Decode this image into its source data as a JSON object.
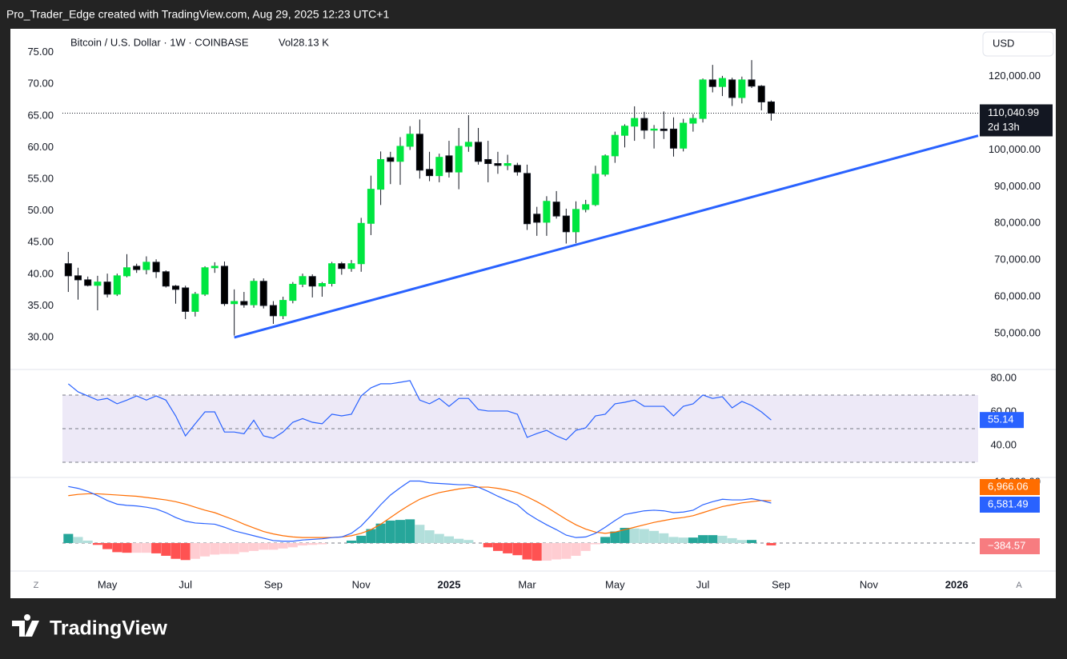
{
  "header": "Pro_Trader_Edge created with TradingView.com, Aug 29, 2025 12:23 UTC+1",
  "footer_brand": "TradingView",
  "axis_buttons": [
    "Z",
    "A"
  ],
  "chart_data": [
    {
      "type": "candlestick",
      "title": "Bitcoin / U.S. Dollar · 1W · COINBASE",
      "volume_label": "Vol28.13 K",
      "currency": "USD",
      "xlim": [
        -0.6,
        93.2
      ],
      "xticks": [
        {
          "value": 4,
          "label": "May"
        },
        {
          "value": 12,
          "label": "Jul"
        },
        {
          "value": 21,
          "label": "Sep"
        },
        {
          "value": 30,
          "label": "Nov"
        },
        {
          "value": 39,
          "label": "2025"
        },
        {
          "value": 47,
          "label": "Mar"
        },
        {
          "value": 56,
          "label": "May"
        },
        {
          "value": 65,
          "label": "Jul"
        },
        {
          "value": 73,
          "label": "Sep"
        },
        {
          "value": 82,
          "label": "Nov"
        },
        {
          "value": 91,
          "label": "2026"
        }
      ],
      "open": [
        69000,
        65700,
        64600,
        63100,
        64000,
        60700,
        65700,
        68300,
        67400,
        69400,
        66800,
        62900,
        62400,
        56000,
        60700,
        67900,
        68300,
        58100,
        58700,
        57800,
        64200,
        57600,
        54800,
        59000,
        63400,
        65500,
        62900,
        63600,
        69000,
        67700,
        69000,
        80000,
        89300,
        97900,
        96900,
        101000,
        104300,
        94700,
        93000,
        98400,
        94000,
        101000,
        102100,
        97400,
        96300,
        95800,
        95800,
        93600,
        82500,
        80300,
        85800,
        82000,
        77700,
        83800,
        85100,
        93400,
        98400,
        104000,
        106500,
        108600,
        105400,
        105700,
        105700,
        100500,
        107300,
        108600,
        119100,
        117300,
        119100,
        114300,
        119100,
        117400,
        113100
      ],
      "high": [
        72200,
        67900,
        65500,
        65700,
        66300,
        66300,
        71600,
        69000,
        71000,
        70200,
        67200,
        63200,
        63000,
        61300,
        68300,
        69400,
        69600,
        62000,
        61300,
        65000,
        65000,
        58800,
        60000,
        64000,
        66300,
        66100,
        64000,
        69500,
        69500,
        70000,
        81500,
        93000,
        99600,
        99500,
        103500,
        106500,
        108300,
        99500,
        99000,
        102500,
        106000,
        109500,
        106000,
        102500,
        99500,
        98700,
        96500,
        96000,
        84500,
        87400,
        88800,
        84000,
        86000,
        86400,
        95700,
        98800,
        105000,
        107000,
        111900,
        110400,
        106800,
        110500,
        108900,
        108500,
        109800,
        119500,
        123200,
        120200,
        119700,
        120000,
        124500,
        117700,
        113500
      ],
      "low": [
        61300,
        59200,
        62800,
        56300,
        59800,
        60200,
        65300,
        66500,
        66100,
        65100,
        62500,
        58100,
        53900,
        54600,
        60200,
        66500,
        57500,
        49400,
        57000,
        57000,
        56800,
        52600,
        53900,
        58200,
        62600,
        59800,
        60000,
        62800,
        66000,
        66800,
        66800,
        76800,
        85000,
        90700,
        90500,
        100000,
        92200,
        91500,
        91200,
        92500,
        89300,
        99500,
        96000,
        91200,
        93500,
        94500,
        93000,
        78200,
        76600,
        76600,
        81300,
        74500,
        74600,
        83000,
        84700,
        92800,
        96500,
        100700,
        102500,
        103000,
        100400,
        103000,
        98200,
        99600,
        105000,
        107500,
        115700,
        114700,
        112000,
        112700,
        116900,
        110800,
        108000
      ],
      "close": [
        65700,
        64600,
        63100,
        64000,
        60700,
        65700,
        67900,
        67400,
        69400,
        66800,
        62900,
        62000,
        56000,
        60700,
        67900,
        68300,
        58100,
        58700,
        57800,
        64200,
        57600,
        54800,
        59000,
        63400,
        65500,
        62900,
        63600,
        69000,
        67700,
        69000,
        80000,
        89300,
        97400,
        96900,
        101000,
        104300,
        94500,
        93000,
        98000,
        94000,
        101000,
        102100,
        96900,
        96300,
        95800,
        96300,
        94000,
        79900,
        80300,
        86000,
        82000,
        77700,
        83800,
        85100,
        93400,
        98400,
        104000,
        106500,
        108600,
        105400,
        105700,
        105300,
        100500,
        107300,
        108600,
        119100,
        117300,
        119500,
        114300,
        119100,
        117400,
        113100,
        110040.99
      ],
      "up_color": "#00e640",
      "down_color": "#000000",
      "last_price": {
        "value": 110040.99,
        "label": "110,040.99"
      },
      "countdown": "2d 13h",
      "ylim": [
        40600,
        132600
      ],
      "yticks": [
        {
          "value": 50000,
          "label": "50,000.00"
        },
        {
          "value": 60000,
          "label": "60,000.00"
        },
        {
          "value": 70000,
          "label": "70,000.00"
        },
        {
          "value": 80000,
          "label": "80,000.00"
        },
        {
          "value": 90000,
          "label": "90,000.00"
        },
        {
          "value": 100000,
          "label": "100,000.00"
        },
        {
          "value": 120000,
          "label": "120,000.00"
        }
      ],
      "y2lim": [
        25.2,
        78.5
      ],
      "y2ticks": [
        {
          "value": 30,
          "label": "30.00"
        },
        {
          "value": 35,
          "label": "35.00"
        },
        {
          "value": 40,
          "label": "40.00"
        },
        {
          "value": 45,
          "label": "45.00"
        },
        {
          "value": 50,
          "label": "50.00"
        },
        {
          "value": 55,
          "label": "55.00"
        },
        {
          "value": 60,
          "label": "60.00"
        },
        {
          "value": 65,
          "label": "65.00"
        },
        {
          "value": 70,
          "label": "70.00"
        },
        {
          "value": 75,
          "label": "75.00"
        }
      ],
      "trendline": {
        "x": [
          17,
          93.2
        ],
        "y": [
          48900,
          103900
        ],
        "color": "#2962ff"
      }
    },
    {
      "type": "line",
      "ylim": [
        21.9,
        83.8
      ],
      "yticks": [
        {
          "value": 80,
          "label": "80.00"
        },
        {
          "value": 60,
          "label": "60.00"
        },
        {
          "value": 40,
          "label": "40.00"
        }
      ],
      "bands": [
        70,
        50,
        30
      ],
      "band_color": "#ede9f7",
      "series": [
        {
          "color": "#2962ff",
          "values": [
            76.7,
            71.9,
            69.5,
            67,
            68,
            64.8,
            67,
            69.5,
            67,
            69.5,
            67,
            57.6,
            45.7,
            52.9,
            60,
            60,
            48,
            48,
            47,
            55,
            45.7,
            44.3,
            48,
            53.8,
            56,
            53.8,
            52.9,
            58.6,
            57.6,
            58.6,
            69.5,
            74.3,
            76.7,
            76.7,
            77.6,
            78.6,
            67,
            64.8,
            68,
            63.3,
            68,
            68,
            61.4,
            60.5,
            60.5,
            60.5,
            58.6,
            44.8,
            47.1,
            49,
            45.7,
            43.3,
            49,
            50.5,
            57.6,
            58.6,
            64.8,
            65.7,
            67,
            63.3,
            63.3,
            63.3,
            57.6,
            63.3,
            64.8,
            70,
            68,
            69,
            62.4,
            66.2,
            63.8,
            60,
            55.14
          ]
        }
      ]
    },
    {
      "type": "macd",
      "ylim": [
        -4342,
        10395
      ],
      "yticks": [
        {
          "value": 10000,
          "label": "10,000.00"
        }
      ],
      "baseline": 0,
      "series": [
        {
          "color": "#ff6d00",
          "values": [
            7800,
            8000,
            8100,
            8100,
            8000,
            7900,
            7800,
            7700,
            7500,
            7300,
            7100,
            6800,
            6400,
            5900,
            5400,
            5000,
            4400,
            3800,
            3100,
            2500,
            1900,
            1500,
            1200,
            1000,
            900,
            900,
            900,
            900,
            1000,
            1200,
            1600,
            2200,
            3100,
            4200,
            5300,
            6300,
            7200,
            7800,
            8300,
            8600,
            8900,
            9100,
            9200,
            9200,
            9000,
            8700,
            8300,
            7600,
            6800,
            5900,
            4900,
            3900,
            3000,
            2300,
            1800,
            1600,
            1800,
            2200,
            2600,
            3000,
            3400,
            3700,
            4000,
            4200,
            4500,
            5000,
            5500,
            6000,
            6300,
            6600,
            6800,
            7000,
            6966.06
          ],
          "last_label": "6,966.06"
        },
        {
          "color": "#2962ff",
          "values": [
            9300,
            9000,
            8500,
            7800,
            7000,
            6400,
            6200,
            6100,
            5900,
            5600,
            5000,
            4200,
            3600,
            3300,
            3200,
            3100,
            2600,
            2000,
            1600,
            1200,
            800,
            400,
            300,
            300,
            500,
            600,
            700,
            900,
            1000,
            1600,
            2800,
            4500,
            6300,
            7900,
            9100,
            10200,
            10200,
            9900,
            9800,
            9700,
            9600,
            9600,
            9200,
            8500,
            7700,
            7000,
            6300,
            4900,
            3900,
            3000,
            2200,
            1300,
            900,
            1000,
            1600,
            2600,
            3700,
            4700,
            5000,
            5300,
            5400,
            5300,
            5000,
            5100,
            5400,
            6300,
            6800,
            7200,
            7100,
            7100,
            7300,
            7000,
            6581.49
          ],
          "last_label": "6,581.49"
        }
      ],
      "histogram": {
        "values": [
          1500,
          1000,
          400,
          -300,
          -1000,
          -1500,
          -1600,
          -1600,
          -1600,
          -1700,
          -2100,
          -2600,
          -2800,
          -2600,
          -2200,
          -1900,
          -1800,
          -1800,
          -1500,
          -1300,
          -1100,
          -1100,
          -900,
          -700,
          -400,
          -300,
          -200,
          0,
          0,
          400,
          1200,
          2300,
          3200,
          3700,
          3800,
          3900,
          3000,
          2100,
          1500,
          1100,
          700,
          500,
          0,
          -700,
          -1300,
          -1700,
          -2000,
          -2700,
          -2900,
          -2900,
          -2700,
          -2600,
          -2100,
          -1300,
          -200,
          1000,
          1900,
          2500,
          2400,
          2300,
          2000,
          1600,
          1000,
          900,
          900,
          1300,
          1300,
          1200,
          800,
          500,
          500,
          0,
          -384.57
        ],
        "last_label": "−384.57",
        "colors": {
          "grow_pos": "#26a69a",
          "fall_pos": "#b2dfdb",
          "grow_neg": "#ffcdd2",
          "fall_neg": "#ff5252"
        },
        "label_color": "#f77c80"
      }
    }
  ]
}
